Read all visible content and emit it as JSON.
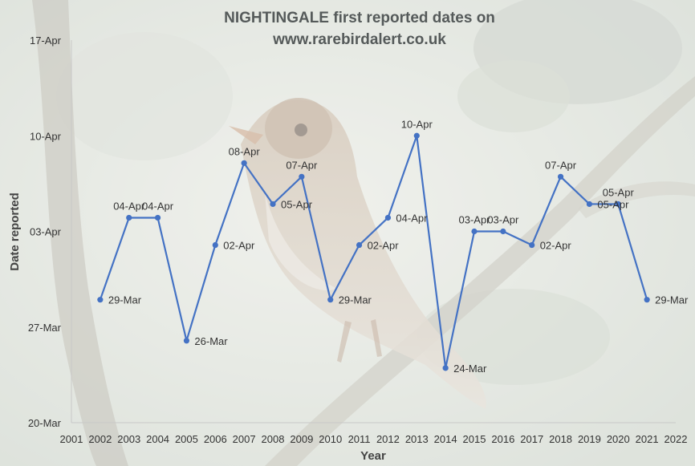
{
  "chart_data": {
    "type": "line",
    "title_line1": "NIGHTINGALE first reported dates on",
    "title_line2": "www.rarebirdalert.co.uk",
    "xlabel": "Year",
    "ylabel": "Date reported",
    "x_ticks": [
      "2001",
      "2002",
      "2003",
      "2004",
      "2005",
      "2006",
      "2007",
      "2008",
      "2009",
      "2010",
      "2011",
      "2012",
      "2013",
      "2014",
      "2015",
      "2016",
      "2017",
      "2018",
      "2019",
      "2020",
      "2021",
      "2022"
    ],
    "y_ticks": [
      "20-Mar",
      "27-Mar",
      "03-Apr",
      "10-Apr",
      "17-Apr"
    ],
    "series": [
      {
        "color": "#4472c4",
        "points": [
          {
            "x": 2002,
            "y": "29-Mar"
          },
          {
            "x": 2003,
            "y": "04-Apr"
          },
          {
            "x": 2004,
            "y": "04-Apr"
          },
          {
            "x": 2005,
            "y": "26-Mar"
          },
          {
            "x": 2006,
            "y": "02-Apr"
          },
          {
            "x": 2007,
            "y": "08-Apr"
          },
          {
            "x": 2008,
            "y": "05-Apr"
          },
          {
            "x": 2009,
            "y": "07-Apr"
          },
          {
            "x": 2010,
            "y": "29-Mar"
          },
          {
            "x": 2011,
            "y": "02-Apr"
          },
          {
            "x": 2012,
            "y": "04-Apr"
          },
          {
            "x": 2013,
            "y": "10-Apr"
          },
          {
            "x": 2014,
            "y": "24-Mar"
          },
          {
            "x": 2015,
            "y": "03-Apr"
          },
          {
            "x": 2016,
            "y": "03-Apr"
          },
          {
            "x": 2017,
            "y": "02-Apr"
          },
          {
            "x": 2018,
            "y": "07-Apr"
          },
          {
            "x": 2019,
            "y": "05-Apr"
          },
          {
            "x": 2020,
            "y": "05-Apr"
          },
          {
            "x": 2021,
            "y": "29-Mar"
          }
        ]
      }
    ],
    "xlim": [
      2001,
      2022
    ],
    "ylim": [
      "20-Mar",
      "17-Apr"
    ],
    "grid": false,
    "legend": "none"
  }
}
